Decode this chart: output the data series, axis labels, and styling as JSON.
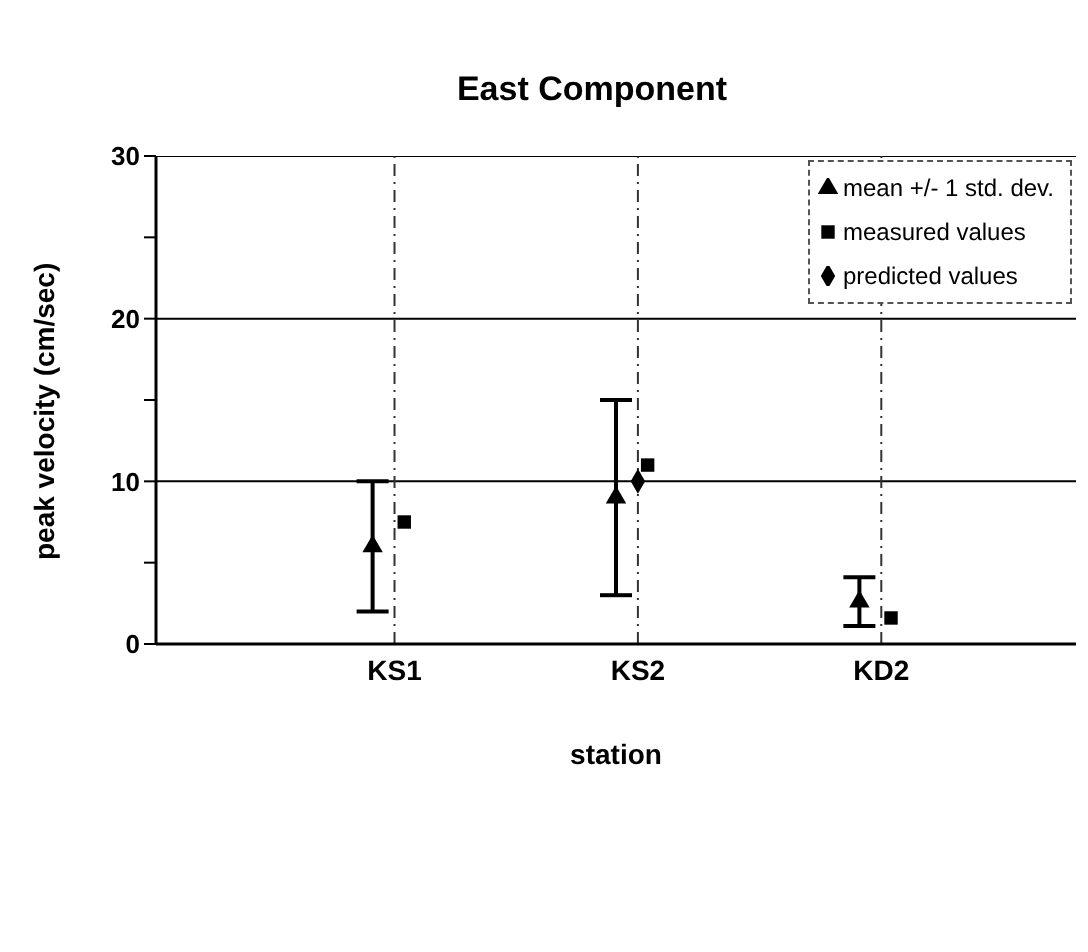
{
  "chart_data": {
    "type": "scatter",
    "title": "East Component",
    "xlabel": "station",
    "ylabel": "peak velocity (cm/sec)",
    "categories": [
      "KS1",
      "KS2",
      "KD2"
    ],
    "series": [
      {
        "name": "mean +/- 1 std. dev.",
        "color": "#000000",
        "marker": "triangle",
        "values": [
          6,
          9,
          2.6
        ],
        "errors": [
          [
            2,
            10
          ],
          [
            3,
            15
          ],
          [
            1.1,
            4.1
          ]
        ]
      },
      {
        "name": "measured values",
        "color": "#000000",
        "marker": "square",
        "values": [
          7.5,
          11,
          1.6
        ]
      },
      {
        "name": "predicted values",
        "color": "#000000",
        "marker": "diamond",
        "values": [
          null,
          10,
          null
        ]
      }
    ],
    "ylim": [
      0,
      30
    ],
    "yticks": [
      0,
      {
        "value": 5,
        "label": null
      },
      10,
      {
        "value": 15,
        "label": null
      },
      20,
      {
        "value": 25,
        "label": null
      },
      30
    ],
    "grid": true,
    "legend": "top right"
  }
}
